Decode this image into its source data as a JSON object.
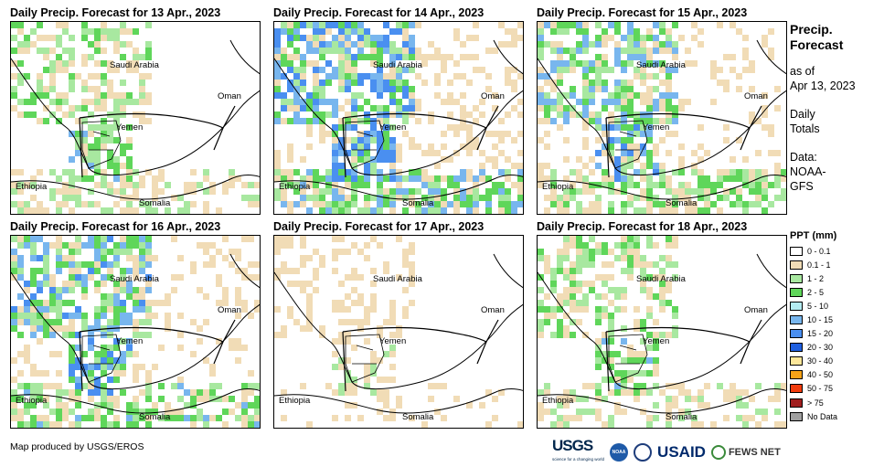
{
  "panels": [
    {
      "title": "Daily Precip. Forecast for 13 Apr., 2023",
      "intensity": 0.45
    },
    {
      "title": "Daily Precip. Forecast for 14 Apr., 2023",
      "intensity": 0.75
    },
    {
      "title": "Daily Precip. Forecast for 15 Apr., 2023",
      "intensity": 0.6
    },
    {
      "title": "Daily Precip. Forecast for 16 Apr., 2023",
      "intensity": 0.65
    },
    {
      "title": "Daily Precip. Forecast for 17 Apr., 2023",
      "intensity": 0.3
    },
    {
      "title": "Daily Precip. Forecast for 18 Apr., 2023",
      "intensity": 0.45
    }
  ],
  "map_labels": {
    "saudi_arabia": "Saudi Arabia",
    "oman": "Oman",
    "yemen": "Yemen",
    "ethiopia": "Ethiopia",
    "somalia": "Somalia"
  },
  "sidebar": {
    "title_line1": "Precip.",
    "title_line2": "Forecast",
    "asof_line1": "as of",
    "asof_line2": "Apr 13, 2023",
    "totals_line1": "Daily",
    "totals_line2": "Totals",
    "data_line1": "Data:",
    "data_line2": "NOAA-",
    "data_line3": "GFS"
  },
  "legend": {
    "title": "PPT (mm)",
    "items": [
      {
        "label": "0 - 0.1",
        "color": "#ffffff"
      },
      {
        "label": "0.1 - 1",
        "color": "#f1dcb6"
      },
      {
        "label": "1 - 2",
        "color": "#a8e8a0"
      },
      {
        "label": "2 - 5",
        "color": "#5fd65a"
      },
      {
        "label": "5 - 10",
        "color": "#b4ecf2"
      },
      {
        "label": "10 - 15",
        "color": "#78b6ee"
      },
      {
        "label": "15 - 20",
        "color": "#4a8ff0"
      },
      {
        "label": "20 - 30",
        "color": "#1f5fe0"
      },
      {
        "label": "30 - 40",
        "color": "#fde79a"
      },
      {
        "label": "40 - 50",
        "color": "#f6a318"
      },
      {
        "label": "50 - 75",
        "color": "#f23c0e"
      },
      {
        "label": "> 75",
        "color": "#a01e1e"
      },
      {
        "label": "No Data",
        "color": "#a0a0a0"
      }
    ]
  },
  "footer": {
    "credit": "Map produced by USGS/EROS",
    "logo_usgs": "USGS",
    "logo_usgs_sub": "science for a changing world",
    "logo_noaa": "NOAA",
    "logo_usaid": "USAID",
    "logo_fews": "FEWS NET"
  }
}
